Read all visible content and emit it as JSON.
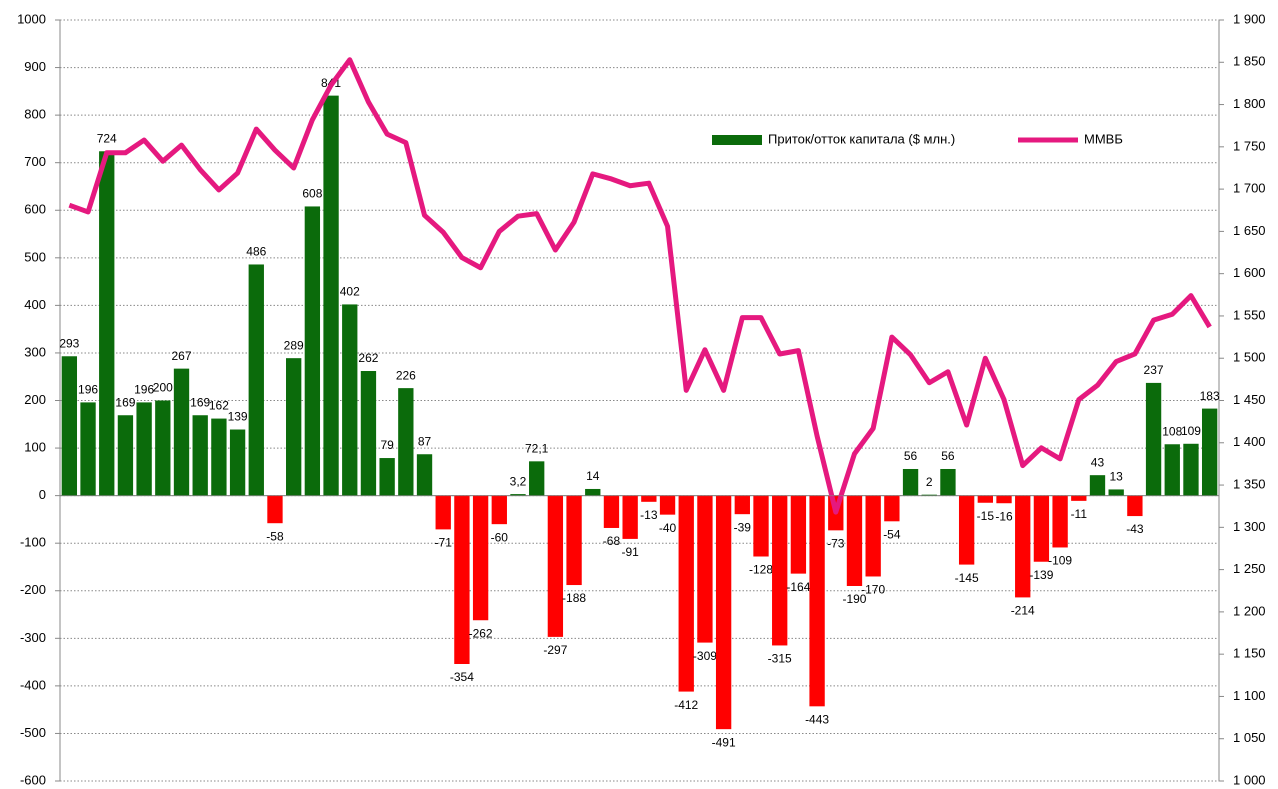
{
  "chart_data": {
    "type": "bar",
    "series": [
      {
        "name": "Приток/отток капитала ($ млн.)",
        "type": "bar",
        "color": "#0b6b0b",
        "negative_color": "#ff0000",
        "values": [
          293,
          196,
          724,
          169,
          196,
          200,
          267,
          169,
          162,
          139,
          486,
          -58,
          289,
          608,
          841,
          402,
          262,
          79,
          226,
          87,
          -71,
          -354,
          -262,
          -60,
          3.2,
          72.1,
          -297,
          -188,
          14,
          -68,
          -91,
          -13,
          -40,
          -412,
          -309,
          -491,
          -39,
          -128,
          -315,
          -164,
          -443,
          -73,
          -190,
          -170,
          -54,
          56,
          2,
          56,
          -145,
          -15,
          -16,
          -214,
          -139,
          -109,
          -11,
          43,
          13,
          -43,
          237,
          108,
          109,
          183
        ],
        "value_labels": [
          "293",
          "196",
          "724",
          "169",
          "196",
          "200",
          "267",
          "169",
          "162",
          "139",
          "486",
          "-58",
          "289",
          "608",
          "841",
          "402",
          "262",
          "79",
          "226",
          "87",
          "-71",
          "-354",
          "-262",
          "-60",
          "3,2",
          "72,1",
          "-297",
          "-188",
          "14",
          "-68",
          "-91",
          "-13",
          "-40",
          "-412",
          "-309",
          "-491",
          "-39",
          "-128",
          "-315",
          "-164",
          "-443",
          "-73",
          "-190",
          "-170",
          "-54",
          "56",
          "2",
          "56",
          "-145",
          "-15",
          "-16",
          "-214",
          "-139",
          "-109",
          "-11",
          "43",
          "13",
          "-43",
          "237",
          "108",
          "109",
          "183"
        ]
      },
      {
        "name": "ММВБ",
        "type": "line",
        "axis": "y2",
        "color": "#e5197f",
        "values": [
          1681,
          1673,
          1743,
          1743,
          1758,
          1733,
          1752,
          1723,
          1699,
          1719,
          1771,
          1746,
          1725,
          1782,
          1823,
          1853,
          1803,
          1765,
          1755,
          1669,
          1649,
          1619,
          1607,
          1650,
          1668,
          1671,
          1628,
          1661,
          1718,
          1712,
          1704,
          1707,
          1656,
          1462,
          1510,
          1462,
          1548,
          1548,
          1505,
          1509,
          1408,
          1318,
          1387,
          1417,
          1525,
          1504,
          1471,
          1484,
          1421,
          1500,
          1451,
          1373,
          1394,
          1381,
          1451,
          1468,
          1496,
          1505,
          1545,
          1552,
          1574,
          1537
        ]
      }
    ],
    "ylim": [
      -600,
      1000
    ],
    "yticks": [
      -600,
      -500,
      -400,
      -300,
      -200,
      -100,
      0,
      100,
      200,
      300,
      400,
      500,
      600,
      700,
      800,
      900,
      1000
    ],
    "y2lim": [
      1000,
      1900
    ],
    "y2ticks": [
      {
        "value": 1000,
        "label": "1 000"
      },
      {
        "value": 1050,
        "label": "1 050"
      },
      {
        "value": 1100,
        "label": "1 100"
      },
      {
        "value": 1150,
        "label": "1 150"
      },
      {
        "value": 1200,
        "label": "1 200"
      },
      {
        "value": 1250,
        "label": "1 250"
      },
      {
        "value": 1300,
        "label": "1 300"
      },
      {
        "value": 1350,
        "label": "1 350"
      },
      {
        "value": 1400,
        "label": "1 400"
      },
      {
        "value": 1450,
        "label": "1 450"
      },
      {
        "value": 1500,
        "label": "1 500"
      },
      {
        "value": 1550,
        "label": "1 550"
      },
      {
        "value": 1600,
        "label": "1 600"
      },
      {
        "value": 1650,
        "label": "1 650"
      },
      {
        "value": 1700,
        "label": "1 700"
      },
      {
        "value": 1750,
        "label": "1 750"
      },
      {
        "value": 1800,
        "label": "1 800"
      },
      {
        "value": 1850,
        "label": "1 850"
      },
      {
        "value": 1900,
        "label": "1 900"
      }
    ],
    "grid": true,
    "legend": "upper right"
  }
}
